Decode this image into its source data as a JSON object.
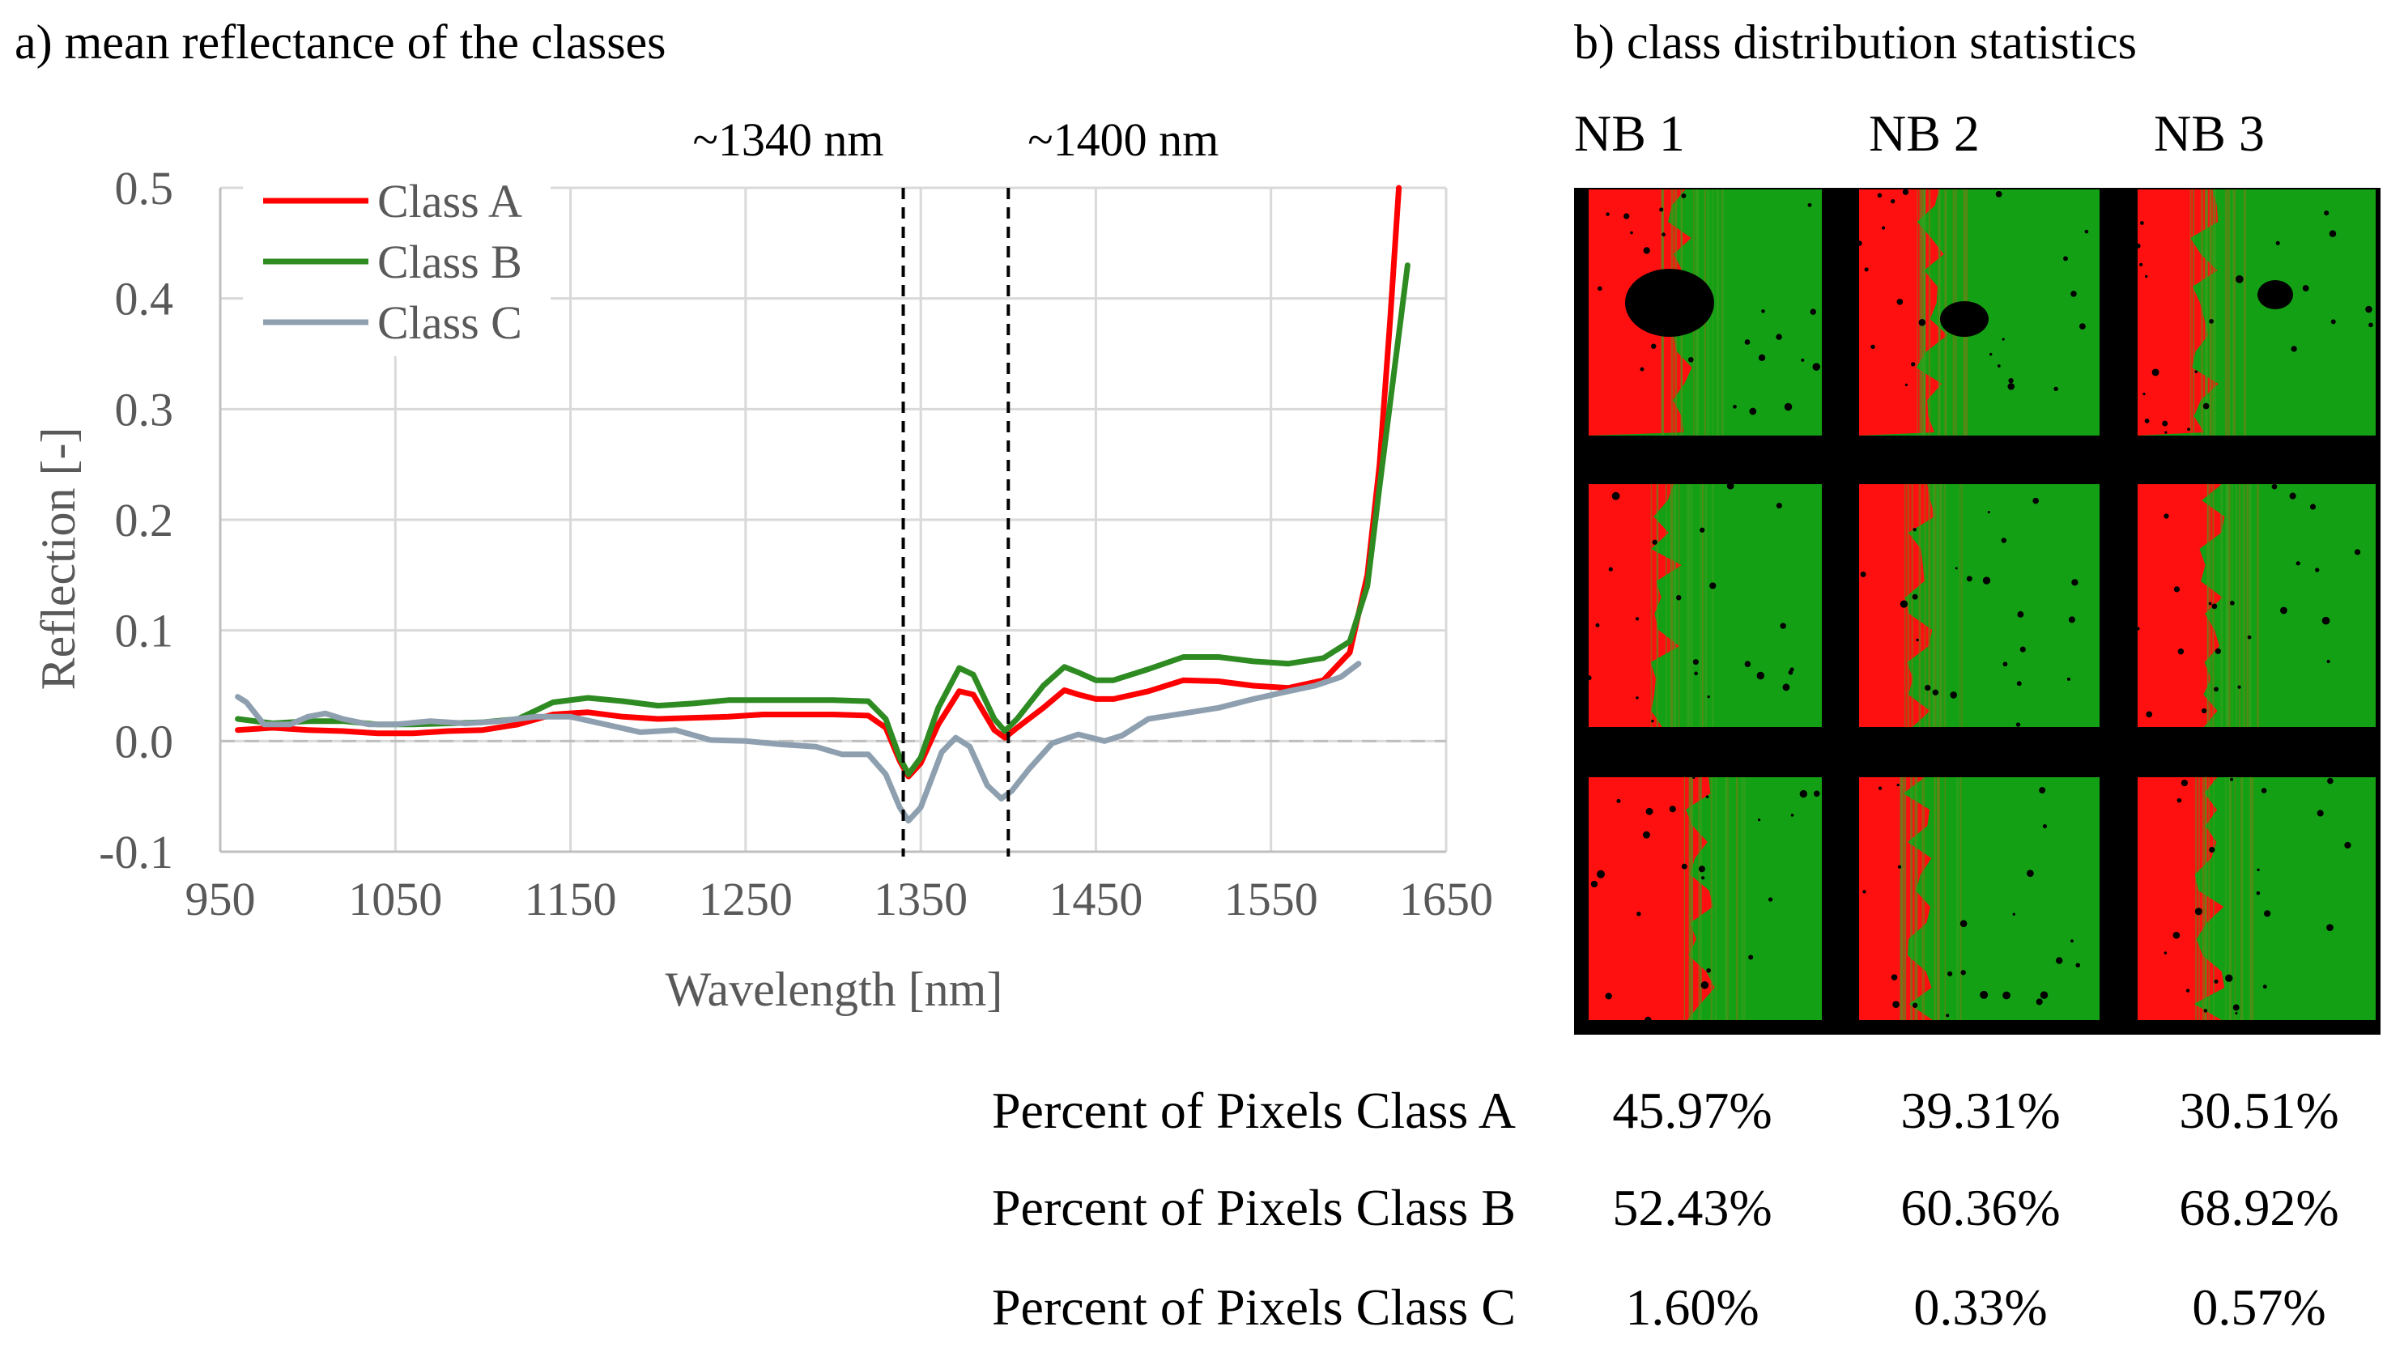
{
  "panel_a_title": "a) mean reflectance of the classes",
  "panel_b_title": "b) class distribution statistics",
  "colors": {
    "class_a": "#ff0000",
    "class_b": "#2e8b22",
    "class_c": "#8ea0b0",
    "tile_red": "#ff1010",
    "tile_green": "#14a014",
    "tile_bg": "#000000"
  },
  "chart_data": {
    "type": "line",
    "title": "",
    "xlabel": "Wavelength [nm]",
    "ylabel": "Reflection [-]",
    "xlim": [
      950,
      1650
    ],
    "ylim": [
      -0.1,
      0.5
    ],
    "xticks": [
      950,
      1050,
      1150,
      1250,
      1350,
      1450,
      1550,
      1650
    ],
    "xtick_labels": [
      "950",
      "1050",
      "1150",
      "1250",
      "1350",
      "1450",
      "1550",
      "1650"
    ],
    "yticks": [
      -0.1,
      0.0,
      0.1,
      0.2,
      0.3,
      0.4,
      0.5
    ],
    "ytick_labels": [
      "-0.1",
      "0.0",
      "0.1",
      "0.2",
      "0.3",
      "0.4",
      "0.5"
    ],
    "grid": true,
    "zero_line": "dashed",
    "legend_position": "top-left",
    "annotations": [
      {
        "x": 1340,
        "label": "~1340 nm",
        "style": "dashed-vertical"
      },
      {
        "x": 1400,
        "label": "~1400 nm",
        "style": "dashed-vertical"
      }
    ],
    "series": [
      {
        "name": "Class A",
        "color": "#ff0000",
        "points": [
          [
            960,
            0.01
          ],
          [
            980,
            0.012
          ],
          [
            1000,
            0.01
          ],
          [
            1020,
            0.009
          ],
          [
            1040,
            0.007
          ],
          [
            1060,
            0.007
          ],
          [
            1080,
            0.009
          ],
          [
            1100,
            0.01
          ],
          [
            1120,
            0.015
          ],
          [
            1140,
            0.024
          ],
          [
            1160,
            0.026
          ],
          [
            1180,
            0.022
          ],
          [
            1200,
            0.02
          ],
          [
            1220,
            0.021
          ],
          [
            1240,
            0.022
          ],
          [
            1260,
            0.024
          ],
          [
            1280,
            0.024
          ],
          [
            1300,
            0.024
          ],
          [
            1320,
            0.023
          ],
          [
            1330,
            0.012
          ],
          [
            1338,
            -0.018
          ],
          [
            1343,
            -0.032
          ],
          [
            1350,
            -0.02
          ],
          [
            1360,
            0.015
          ],
          [
            1372,
            0.045
          ],
          [
            1380,
            0.042
          ],
          [
            1392,
            0.01
          ],
          [
            1398,
            0.003
          ],
          [
            1405,
            0.012
          ],
          [
            1420,
            0.03
          ],
          [
            1432,
            0.046
          ],
          [
            1440,
            0.042
          ],
          [
            1450,
            0.038
          ],
          [
            1460,
            0.038
          ],
          [
            1480,
            0.045
          ],
          [
            1500,
            0.055
          ],
          [
            1520,
            0.054
          ],
          [
            1540,
            0.05
          ],
          [
            1560,
            0.048
          ],
          [
            1580,
            0.055
          ],
          [
            1595,
            0.08
          ],
          [
            1605,
            0.15
          ],
          [
            1612,
            0.25
          ],
          [
            1618,
            0.38
          ],
          [
            1623,
            0.5
          ]
        ]
      },
      {
        "name": "Class B",
        "color": "#2e8b22",
        "points": [
          [
            960,
            0.02
          ],
          [
            980,
            0.016
          ],
          [
            1000,
            0.018
          ],
          [
            1020,
            0.018
          ],
          [
            1040,
            0.015
          ],
          [
            1060,
            0.015
          ],
          [
            1080,
            0.016
          ],
          [
            1100,
            0.017
          ],
          [
            1120,
            0.02
          ],
          [
            1140,
            0.035
          ],
          [
            1160,
            0.039
          ],
          [
            1180,
            0.036
          ],
          [
            1200,
            0.032
          ],
          [
            1220,
            0.034
          ],
          [
            1240,
            0.037
          ],
          [
            1260,
            0.037
          ],
          [
            1280,
            0.037
          ],
          [
            1300,
            0.037
          ],
          [
            1320,
            0.036
          ],
          [
            1330,
            0.02
          ],
          [
            1338,
            -0.015
          ],
          [
            1343,
            -0.03
          ],
          [
            1350,
            -0.015
          ],
          [
            1360,
            0.03
          ],
          [
            1372,
            0.066
          ],
          [
            1380,
            0.06
          ],
          [
            1392,
            0.02
          ],
          [
            1398,
            0.009
          ],
          [
            1405,
            0.02
          ],
          [
            1420,
            0.05
          ],
          [
            1432,
            0.067
          ],
          [
            1440,
            0.062
          ],
          [
            1450,
            0.055
          ],
          [
            1460,
            0.055
          ],
          [
            1480,
            0.065
          ],
          [
            1500,
            0.076
          ],
          [
            1520,
            0.076
          ],
          [
            1540,
            0.072
          ],
          [
            1560,
            0.07
          ],
          [
            1580,
            0.075
          ],
          [
            1595,
            0.09
          ],
          [
            1605,
            0.14
          ],
          [
            1612,
            0.23
          ],
          [
            1620,
            0.33
          ],
          [
            1628,
            0.43
          ]
        ]
      },
      {
        "name": "Class C",
        "color": "#8ea0b0",
        "points": [
          [
            960,
            0.04
          ],
          [
            965,
            0.035
          ],
          [
            975,
            0.015
          ],
          [
            990,
            0.015
          ],
          [
            1000,
            0.022
          ],
          [
            1010,
            0.025
          ],
          [
            1020,
            0.02
          ],
          [
            1035,
            0.015
          ],
          [
            1050,
            0.015
          ],
          [
            1070,
            0.018
          ],
          [
            1090,
            0.016
          ],
          [
            1110,
            0.018
          ],
          [
            1130,
            0.022
          ],
          [
            1150,
            0.022
          ],
          [
            1170,
            0.015
          ],
          [
            1190,
            0.008
          ],
          [
            1210,
            0.01
          ],
          [
            1230,
            0.001
          ],
          [
            1250,
            0.0
          ],
          [
            1270,
            -0.003
          ],
          [
            1290,
            -0.005
          ],
          [
            1305,
            -0.012
          ],
          [
            1320,
            -0.012
          ],
          [
            1330,
            -0.03
          ],
          [
            1338,
            -0.06
          ],
          [
            1343,
            -0.072
          ],
          [
            1350,
            -0.06
          ],
          [
            1362,
            -0.01
          ],
          [
            1370,
            0.003
          ],
          [
            1378,
            -0.005
          ],
          [
            1388,
            -0.04
          ],
          [
            1396,
            -0.052
          ],
          [
            1402,
            -0.045
          ],
          [
            1412,
            -0.025
          ],
          [
            1425,
            -0.002
          ],
          [
            1440,
            0.006
          ],
          [
            1455,
            0.0
          ],
          [
            1465,
            0.005
          ],
          [
            1480,
            0.02
          ],
          [
            1500,
            0.025
          ],
          [
            1520,
            0.03
          ],
          [
            1540,
            0.038
          ],
          [
            1560,
            0.045
          ],
          [
            1575,
            0.05
          ],
          [
            1590,
            0.058
          ],
          [
            1600,
            0.07
          ]
        ]
      }
    ]
  },
  "notebooks": [
    "NB 1",
    "NB 2",
    "NB 3"
  ],
  "stats": [
    {
      "label": "Percent of Pixels Class A",
      "values": [
        "45.97%",
        "39.31%",
        "30.51%"
      ]
    },
    {
      "label": "Percent of Pixels Class B",
      "values": [
        "52.43%",
        "60.36%",
        "68.92%"
      ]
    },
    {
      "label": "Percent of Pixels Class C",
      "values": [
        "1.60%",
        "0.33%",
        "0.57%"
      ]
    }
  ]
}
